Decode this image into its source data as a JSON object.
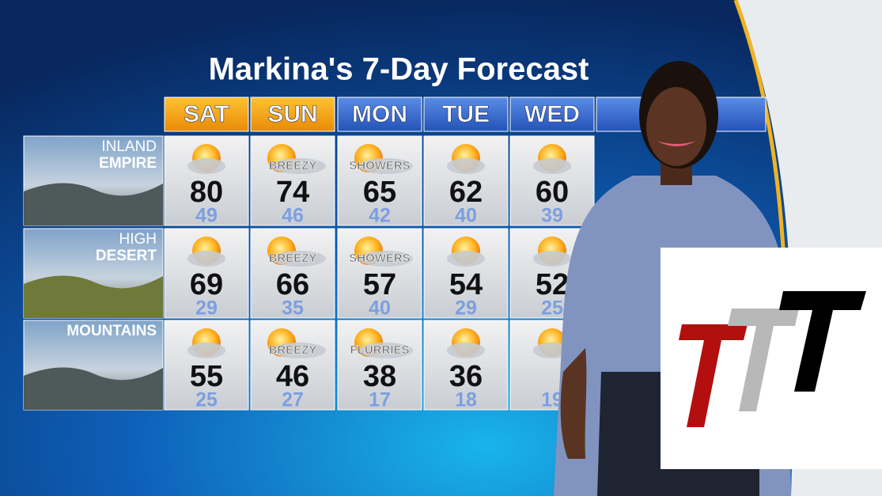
{
  "header": {
    "title": "Markina's 7-Day Forecast"
  },
  "days": [
    "SAT",
    "SUN",
    "MON",
    "TUE",
    "WED"
  ],
  "regions": [
    {
      "label": [
        "INLAND",
        "EMPIRE"
      ],
      "highs": [
        80,
        74,
        65,
        62,
        60
      ],
      "lows": [
        49,
        46,
        42,
        40,
        39
      ],
      "conditions": [
        null,
        "BREEZY",
        "SHOWERS",
        null,
        null
      ]
    },
    {
      "label": [
        "HIGH",
        "DESERT"
      ],
      "highs": [
        69,
        66,
        57,
        54,
        52
      ],
      "lows": [
        29,
        35,
        40,
        29,
        25
      ],
      "conditions": [
        null,
        "BREEZY",
        "SHOWERS",
        null,
        null
      ]
    },
    {
      "label": [
        "MOUNTAINS"
      ],
      "highs": [
        55,
        46,
        38,
        36,
        null
      ],
      "lows": [
        25,
        27,
        17,
        18,
        19
      ],
      "conditions": [
        null,
        "BREEZY",
        "FLURRIES",
        null,
        null
      ]
    }
  ]
}
